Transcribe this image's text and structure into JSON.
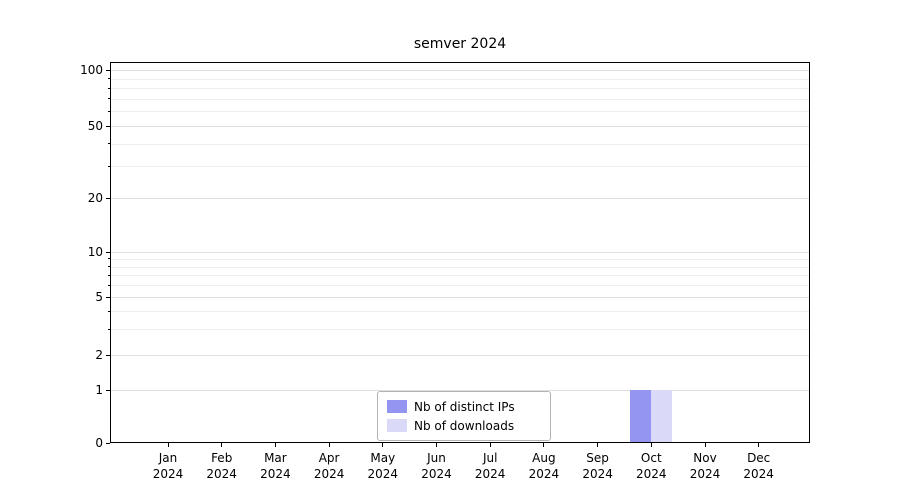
{
  "chart_data": {
    "type": "bar",
    "title": "semver 2024",
    "categories": [
      "Jan",
      "Feb",
      "Mar",
      "Apr",
      "May",
      "Jun",
      "Jul",
      "Aug",
      "Sep",
      "Oct",
      "Nov",
      "Dec"
    ],
    "x_year": "2024",
    "series": [
      {
        "name": "Nb of distinct IPs",
        "color": "#9494f1",
        "values": [
          0,
          0,
          0,
          0,
          0,
          0,
          0,
          0,
          0,
          1,
          0,
          0
        ]
      },
      {
        "name": "Nb of downloads",
        "color": "#dadaf8",
        "values": [
          0,
          0,
          0,
          0,
          0,
          0,
          0,
          0,
          0,
          1,
          0,
          0
        ]
      }
    ],
    "xlabel": "",
    "ylabel": "",
    "yscale": "symlog",
    "ylim": [
      0,
      100
    ],
    "yticks": [
      0,
      1,
      2,
      5,
      10,
      20,
      50,
      100
    ],
    "yticks_minor": [
      3,
      4,
      6,
      7,
      8,
      9,
      30,
      40,
      60,
      70,
      80,
      90
    ],
    "grid": true,
    "legend_position": "lower center"
  }
}
